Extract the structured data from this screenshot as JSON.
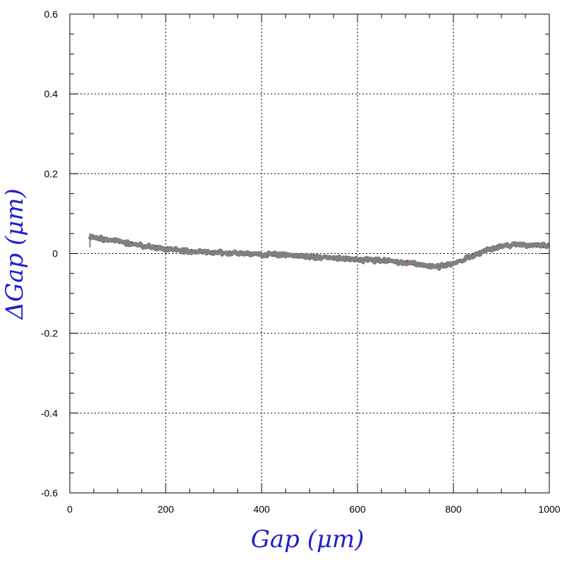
{
  "chart_data": {
    "type": "line",
    "xlabel": "Gap  (μm)",
    "ylabel": "ΔGap  (μm)",
    "xlim": [
      0,
      1000
    ],
    "ylim": [
      -0.6,
      0.6
    ],
    "x_ticks": [
      "0",
      "200",
      "400",
      "600",
      "800",
      "1000"
    ],
    "y_ticks": [
      "0.6",
      "0.4",
      "0.2",
      "0",
      "-0.2",
      "-0.4",
      "-0.6"
    ],
    "grid": true,
    "grid_style": "dotted",
    "colors": {
      "axis_title": "#2020c8",
      "series_overlay": [
        "#0000cc",
        "#cc0000",
        "#00aa00",
        "#808080"
      ]
    },
    "series": [
      {
        "color": "#808080",
        "x": [
          42,
          50,
          100,
          150,
          200,
          250,
          300,
          350,
          400,
          450,
          500,
          550,
          600,
          650,
          700,
          750,
          770,
          800,
          830,
          850,
          880,
          900,
          930,
          950,
          1000
        ],
        "y": [
          0.04,
          0.04,
          0.03,
          0.02,
          0.012,
          0.005,
          0.003,
          0.0,
          -0.002,
          -0.004,
          -0.008,
          -0.012,
          -0.016,
          -0.018,
          -0.022,
          -0.032,
          -0.033,
          -0.025,
          -0.01,
          0.0,
          0.012,
          0.018,
          0.022,
          0.022,
          0.02
        ]
      }
    ]
  }
}
